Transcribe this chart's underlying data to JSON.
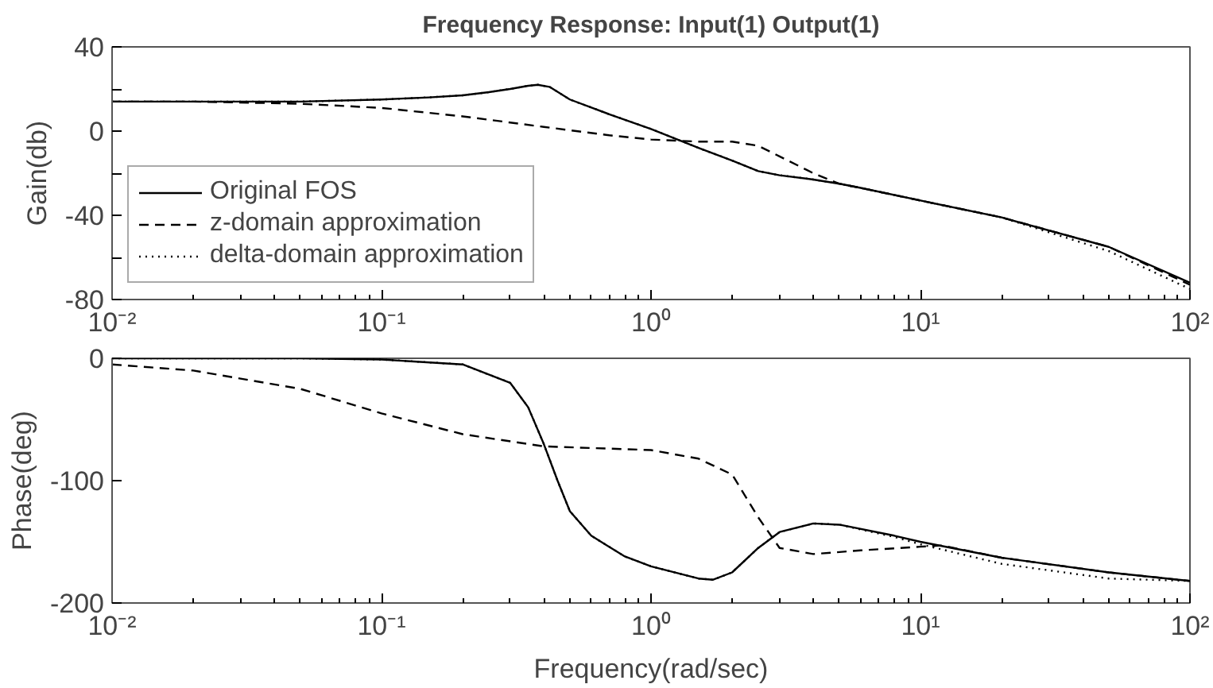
{
  "chart_data": [
    {
      "type": "line",
      "title": "Frequency Response: Input(1) Output(1)",
      "ylabel": "Gain(db)",
      "log": "x",
      "grid": false,
      "legend": "bottom left",
      "xlim": [
        0.01,
        100
      ],
      "ylim": [
        -80,
        40
      ],
      "xticks": [
        {
          "value": 0.01,
          "label": "10⁻²"
        },
        {
          "value": 0.1,
          "label": "10⁻¹"
        },
        {
          "value": 1,
          "label": "10⁰"
        },
        {
          "value": 10,
          "label": "10¹"
        },
        {
          "value": 100,
          "label": "10²"
        }
      ],
      "yticks": [
        -80,
        {
          "value": -60,
          "label": null
        },
        -40,
        {
          "value": -20,
          "label": null
        },
        0,
        {
          "value": 20,
          "label": null
        },
        40
      ],
      "series": [
        {
          "name": "Original FOS",
          "color": "#000000",
          "line_style": "solid",
          "x": [
            0.01,
            0.02,
            0.05,
            0.1,
            0.15,
            0.2,
            0.25,
            0.3,
            0.35,
            0.38,
            0.42,
            0.5,
            0.7,
            1,
            1.5,
            2,
            2.5,
            3,
            4,
            5,
            6,
            10,
            20,
            50,
            100
          ],
          "values": [
            14,
            14,
            14,
            15,
            16,
            17,
            18.5,
            20,
            21.5,
            22,
            21,
            15,
            8,
            1,
            -8,
            -14,
            -19,
            -21,
            -23,
            -25,
            -27,
            -33,
            -41,
            -55,
            -72
          ]
        },
        {
          "name": "z-domain approximation",
          "color": "#000000",
          "line_style": "dashed",
          "x": [
            0.01,
            0.02,
            0.05,
            0.1,
            0.2,
            0.4,
            0.7,
            1,
            1.5,
            2,
            2.5,
            3,
            4,
            5,
            6,
            10,
            20,
            50,
            100
          ],
          "values": [
            14,
            14,
            13,
            11,
            7,
            2,
            -2,
            -4,
            -5,
            -5,
            -7,
            -12,
            -20,
            -25,
            -27,
            -33,
            -41,
            -55,
            -73
          ]
        },
        {
          "name": "delta-domain approximation",
          "color": "#000000",
          "line_style": "dotted",
          "x": [
            0.01,
            0.02,
            0.05,
            0.1,
            0.15,
            0.2,
            0.25,
            0.3,
            0.35,
            0.38,
            0.42,
            0.5,
            0.7,
            1,
            1.5,
            2,
            2.5,
            3,
            4,
            5,
            6,
            10,
            20,
            50,
            100
          ],
          "values": [
            14,
            14,
            14,
            15,
            16,
            17,
            18.5,
            20,
            21.5,
            22,
            21,
            15,
            8,
            1,
            -8,
            -14,
            -19,
            -21,
            -23,
            -25,
            -27,
            -33,
            -41,
            -57,
            -75
          ]
        }
      ]
    },
    {
      "type": "line",
      "xlabel": "Frequency(rad/sec)",
      "ylabel": "Phase(deg)",
      "log": "x",
      "grid": false,
      "xlim": [
        0.01,
        100
      ],
      "ylim": [
        -200,
        0
      ],
      "xticks": [
        {
          "value": 0.01,
          "label": "10⁻²"
        },
        {
          "value": 0.1,
          "label": "10⁻¹"
        },
        {
          "value": 1,
          "label": "10⁰"
        },
        {
          "value": 10,
          "label": "10¹"
        },
        {
          "value": 100,
          "label": "10²"
        }
      ],
      "yticks": [
        -200,
        -100,
        0
      ],
      "series": [
        {
          "color": "#000000",
          "line_style": "solid",
          "x": [
            0.01,
            0.05,
            0.1,
            0.2,
            0.3,
            0.35,
            0.4,
            0.45,
            0.5,
            0.6,
            0.8,
            1,
            1.5,
            1.7,
            2,
            2.5,
            3,
            4,
            5,
            8,
            10,
            20,
            50,
            100
          ],
          "values": [
            0,
            0,
            -1,
            -5,
            -20,
            -40,
            -70,
            -100,
            -125,
            -145,
            -162,
            -170,
            -180,
            -181,
            -175,
            -155,
            -142,
            -135,
            -136,
            -145,
            -150,
            -163,
            -175,
            -182
          ]
        },
        {
          "color": "#000000",
          "line_style": "dashed",
          "x": [
            0.01,
            0.02,
            0.05,
            0.1,
            0.2,
            0.4,
            1,
            1.5,
            2,
            2.5,
            3,
            4,
            6,
            10,
            12,
            20,
            50,
            100
          ],
          "values": [
            -5,
            -10,
            -25,
            -45,
            -62,
            -72,
            -75,
            -82,
            -95,
            -130,
            -155,
            -160,
            -157,
            -154,
            -153,
            -163,
            -175,
            -182
          ]
        },
        {
          "color": "#000000",
          "line_style": "dotted",
          "x": [
            0.01,
            0.05,
            0.1,
            0.2,
            0.3,
            0.35,
            0.4,
            0.45,
            0.5,
            0.6,
            0.8,
            1,
            1.5,
            1.7,
            2,
            2.5,
            3,
            4,
            5,
            8,
            10,
            20,
            50,
            100
          ],
          "values": [
            0,
            0,
            -1,
            -5,
            -20,
            -40,
            -70,
            -100,
            -125,
            -145,
            -162,
            -170,
            -180,
            -181,
            -175,
            -155,
            -142,
            -135,
            -136,
            -146,
            -152,
            -168,
            -180,
            -182
          ]
        }
      ]
    }
  ]
}
